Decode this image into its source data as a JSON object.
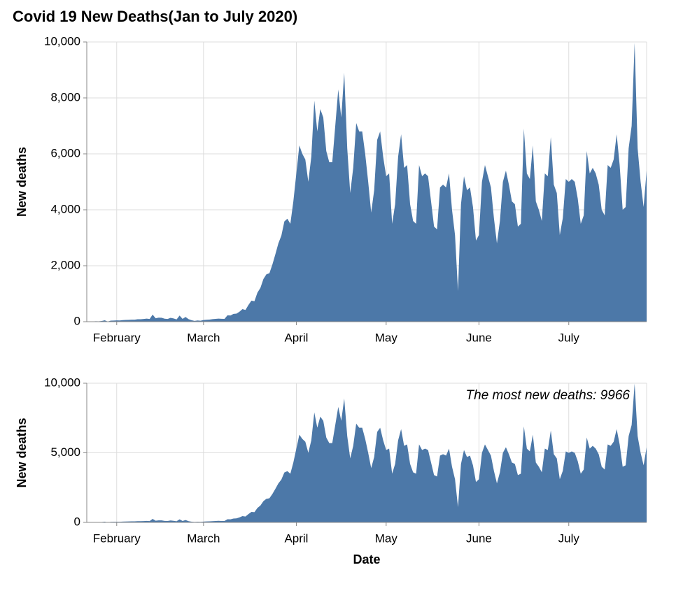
{
  "chart_data": [
    {
      "type": "area",
      "title": "Covid 19 New Deaths(Jan to July 2020)",
      "y_label": "New deaths",
      "color": "#4c78a8",
      "grid": true,
      "xlim": [
        22,
        209
      ],
      "xticks": [
        {
          "value": 32,
          "label": "February"
        },
        {
          "value": 61,
          "label": "March"
        },
        {
          "value": 92,
          "label": "April"
        },
        {
          "value": 122,
          "label": "May"
        },
        {
          "value": 153,
          "label": "June"
        },
        {
          "value": 183,
          "label": "July"
        }
      ],
      "ylim": [
        0,
        10000
      ],
      "yticks": [
        0,
        {
          "value": 2000,
          "label": "2,000"
        },
        {
          "value": 4000,
          "label": "4,000"
        },
        {
          "value": 6000,
          "label": "6,000"
        },
        {
          "value": 8000,
          "label": "8,000"
        },
        {
          "value": 10000,
          "label": "10,000"
        }
      ],
      "x": [
        22,
        23,
        24,
        25,
        26,
        27,
        28,
        29,
        30,
        31,
        32,
        33,
        34,
        35,
        36,
        37,
        38,
        39,
        40,
        41,
        42,
        43,
        44,
        45,
        46,
        47,
        48,
        49,
        50,
        51,
        52,
        53,
        54,
        55,
        56,
        57,
        58,
        59,
        60,
        61,
        62,
        63,
        64,
        65,
        66,
        67,
        68,
        69,
        70,
        71,
        72,
        73,
        74,
        75,
        76,
        77,
        78,
        79,
        80,
        81,
        82,
        83,
        84,
        85,
        86,
        87,
        88,
        89,
        90,
        91,
        92,
        93,
        94,
        95,
        96,
        97,
        98,
        99,
        100,
        101,
        102,
        103,
        104,
        105,
        106,
        107,
        108,
        109,
        110,
        111,
        112,
        113,
        114,
        115,
        116,
        117,
        118,
        119,
        120,
        121,
        122,
        123,
        124,
        125,
        126,
        127,
        128,
        129,
        130,
        131,
        132,
        133,
        134,
        135,
        136,
        137,
        138,
        139,
        140,
        141,
        142,
        143,
        144,
        145,
        146,
        147,
        148,
        149,
        150,
        151,
        152,
        153,
        154,
        155,
        156,
        157,
        158,
        159,
        160,
        161,
        162,
        163,
        164,
        165,
        166,
        167,
        168,
        169,
        170,
        171,
        172,
        173,
        174,
        175,
        176,
        177,
        178,
        179,
        180,
        181,
        182,
        183,
        184,
        185,
        186,
        187,
        188,
        189,
        190,
        191,
        192,
        193,
        194,
        195,
        196,
        197,
        198,
        199,
        200,
        201,
        202,
        203,
        204,
        205,
        206,
        207,
        208,
        209
      ],
      "values": [
        17,
        0,
        8,
        16,
        14,
        26,
        49,
        2,
        38,
        42,
        46,
        45,
        57,
        64,
        66,
        73,
        73,
        86,
        89,
        97,
        108,
        97,
        254,
        121,
        143,
        142,
        105,
        98,
        136,
        115,
        80,
        220,
        100,
        170,
        90,
        52,
        29,
        44,
        35,
        58,
        69,
        74,
        91,
        100,
        110,
        103,
        99,
        228,
        221,
        279,
        289,
        355,
        451,
        419,
        596,
        753,
        732,
        1036,
        1210,
        1526,
        1695,
        1732,
        2043,
        2411,
        2799,
        3079,
        3585,
        3680,
        3500,
        4300,
        5300,
        6300,
        6000,
        5800,
        5000,
        5900,
        7900,
        6800,
        7600,
        7300,
        6100,
        5700,
        5700,
        7000,
        8300,
        7300,
        8900,
        6200,
        4600,
        5500,
        7100,
        6800,
        6800,
        6000,
        5000,
        3900,
        4700,
        6500,
        6800,
        5900,
        5200,
        5300,
        3500,
        4200,
        5900,
        6700,
        5500,
        5600,
        4200,
        3600,
        3500,
        5600,
        5200,
        5300,
        5200,
        4300,
        3400,
        3300,
        4800,
        4900,
        4800,
        5300,
        4000,
        3100,
        1100,
        4200,
        5200,
        4700,
        4800,
        4100,
        2900,
        3100,
        5000,
        5600,
        5200,
        4800,
        3700,
        2800,
        3600,
        5000,
        5400,
        4900,
        4300,
        4200,
        3400,
        3500,
        6900,
        5300,
        5100,
        6300,
        4300,
        4000,
        3600,
        5300,
        5200,
        6600,
        4900,
        4600,
        3100,
        3700,
        5100,
        5000,
        5100,
        5000,
        4400,
        3500,
        3800,
        6100,
        5300,
        5500,
        5300,
        4900,
        4000,
        3800,
        5600,
        5500,
        5800,
        6700,
        5600,
        4000,
        4100,
        6200,
        7000,
        9966,
        6200,
        5000,
        4100,
        5400
      ]
    },
    {
      "type": "area",
      "y_label": "New deaths",
      "x_label": "Date",
      "annotation": "The most new deaths: 9966",
      "color": "#4c78a8",
      "grid": true,
      "xlim": [
        22,
        209
      ],
      "xticks": [
        {
          "value": 32,
          "label": "February"
        },
        {
          "value": 61,
          "label": "March"
        },
        {
          "value": 92,
          "label": "April"
        },
        {
          "value": 122,
          "label": "May"
        },
        {
          "value": 153,
          "label": "June"
        },
        {
          "value": 183,
          "label": "July"
        }
      ],
      "ylim": [
        0,
        10000
      ],
      "yticks": [
        0,
        {
          "value": 5000,
          "label": "5,000"
        },
        {
          "value": 10000,
          "label": "10,000"
        }
      ],
      "x": [
        22,
        23,
        24,
        25,
        26,
        27,
        28,
        29,
        30,
        31,
        32,
        33,
        34,
        35,
        36,
        37,
        38,
        39,
        40,
        41,
        42,
        43,
        44,
        45,
        46,
        47,
        48,
        49,
        50,
        51,
        52,
        53,
        54,
        55,
        56,
        57,
        58,
        59,
        60,
        61,
        62,
        63,
        64,
        65,
        66,
        67,
        68,
        69,
        70,
        71,
        72,
        73,
        74,
        75,
        76,
        77,
        78,
        79,
        80,
        81,
        82,
        83,
        84,
        85,
        86,
        87,
        88,
        89,
        90,
        91,
        92,
        93,
        94,
        95,
        96,
        97,
        98,
        99,
        100,
        101,
        102,
        103,
        104,
        105,
        106,
        107,
        108,
        109,
        110,
        111,
        112,
        113,
        114,
        115,
        116,
        117,
        118,
        119,
        120,
        121,
        122,
        123,
        124,
        125,
        126,
        127,
        128,
        129,
        130,
        131,
        132,
        133,
        134,
        135,
        136,
        137,
        138,
        139,
        140,
        141,
        142,
        143,
        144,
        145,
        146,
        147,
        148,
        149,
        150,
        151,
        152,
        153,
        154,
        155,
        156,
        157,
        158,
        159,
        160,
        161,
        162,
        163,
        164,
        165,
        166,
        167,
        168,
        169,
        170,
        171,
        172,
        173,
        174,
        175,
        176,
        177,
        178,
        179,
        180,
        181,
        182,
        183,
        184,
        185,
        186,
        187,
        188,
        189,
        190,
        191,
        192,
        193,
        194,
        195,
        196,
        197,
        198,
        199,
        200,
        201,
        202,
        203,
        204,
        205,
        206,
        207,
        208,
        209
      ],
      "values": [
        17,
        0,
        8,
        16,
        14,
        26,
        49,
        2,
        38,
        42,
        46,
        45,
        57,
        64,
        66,
        73,
        73,
        86,
        89,
        97,
        108,
        97,
        254,
        121,
        143,
        142,
        105,
        98,
        136,
        115,
        80,
        220,
        100,
        170,
        90,
        52,
        29,
        44,
        35,
        58,
        69,
        74,
        91,
        100,
        110,
        103,
        99,
        228,
        221,
        279,
        289,
        355,
        451,
        419,
        596,
        753,
        732,
        1036,
        1210,
        1526,
        1695,
        1732,
        2043,
        2411,
        2799,
        3079,
        3585,
        3680,
        3500,
        4300,
        5300,
        6300,
        6000,
        5800,
        5000,
        5900,
        7900,
        6800,
        7600,
        7300,
        6100,
        5700,
        5700,
        7000,
        8300,
        7300,
        8900,
        6200,
        4600,
        5500,
        7100,
        6800,
        6800,
        6000,
        5000,
        3900,
        4700,
        6500,
        6800,
        5900,
        5200,
        5300,
        3500,
        4200,
        5900,
        6700,
        5500,
        5600,
        4200,
        3600,
        3500,
        5600,
        5200,
        5300,
        5200,
        4300,
        3400,
        3300,
        4800,
        4900,
        4800,
        5300,
        4000,
        3100,
        1100,
        4200,
        5200,
        4700,
        4800,
        4100,
        2900,
        3100,
        5000,
        5600,
        5200,
        4800,
        3700,
        2800,
        3600,
        5000,
        5400,
        4900,
        4300,
        4200,
        3400,
        3500,
        6900,
        5300,
        5100,
        6300,
        4300,
        4000,
        3600,
        5300,
        5200,
        6600,
        4900,
        4600,
        3100,
        3700,
        5100,
        5000,
        5100,
        5000,
        4400,
        3500,
        3800,
        6100,
        5300,
        5500,
        5300,
        4900,
        4000,
        3800,
        5600,
        5500,
        5800,
        6700,
        5600,
        4000,
        4100,
        6200,
        7000,
        9966,
        6200,
        5000,
        4100,
        5400
      ]
    }
  ]
}
